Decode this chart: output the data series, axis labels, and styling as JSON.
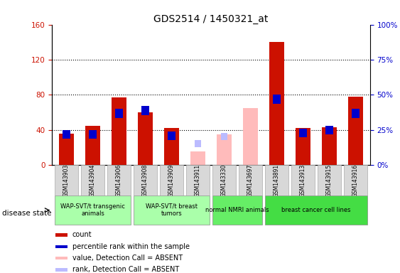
{
  "title": "GDS2514 / 1450321_at",
  "samples": [
    "GSM143903",
    "GSM143904",
    "GSM143906",
    "GSM143908",
    "GSM143909",
    "GSM143911",
    "GSM143330",
    "GSM143697",
    "GSM143891",
    "GSM143913",
    "GSM143915",
    "GSM143916"
  ],
  "count": [
    36,
    45,
    77,
    60,
    42,
    0,
    35,
    0,
    140,
    42,
    43,
    78
  ],
  "rank_pct": [
    25,
    25,
    40,
    42,
    24,
    0,
    0,
    0,
    50,
    26,
    28,
    40
  ],
  "absent_value": [
    0,
    0,
    0,
    0,
    0,
    16,
    35,
    65,
    0,
    0,
    0,
    0
  ],
  "absent_rank_pct": [
    0,
    0,
    0,
    0,
    0,
    18,
    23,
    0,
    0,
    0,
    0,
    0
  ],
  "is_absent": [
    false,
    false,
    false,
    false,
    false,
    true,
    true,
    true,
    false,
    false,
    false,
    false
  ],
  "group_data": [
    {
      "start": 0,
      "end": 2,
      "label": "WAP-SVT/t transgenic\nanimals",
      "color": "#aaffaa"
    },
    {
      "start": 3,
      "end": 5,
      "label": "WAP-SVT/t breast\ntumors",
      "color": "#aaffaa"
    },
    {
      "start": 6,
      "end": 7,
      "label": "normal NMRI animals",
      "color": "#66ee66"
    },
    {
      "start": 8,
      "end": 11,
      "label": "breast cancer cell lines",
      "color": "#44dd44"
    }
  ],
  "ylim_left": [
    0,
    160
  ],
  "ylim_right": [
    0,
    100
  ],
  "yticks_left": [
    0,
    40,
    80,
    120,
    160
  ],
  "yticks_right": [
    0,
    25,
    50,
    75,
    100
  ],
  "ytick_labels_right": [
    "0%",
    "25%",
    "50%",
    "75%",
    "100%"
  ],
  "bar_color_count": "#cc1100",
  "bar_color_rank": "#0000cc",
  "bar_color_absent_value": "#ffbbbb",
  "bar_color_absent_rank": "#bbbbff",
  "legend_items": [
    {
      "color": "#cc1100",
      "label": "count"
    },
    {
      "color": "#0000cc",
      "label": "percentile rank within the sample"
    },
    {
      "color": "#ffbbbb",
      "label": "value, Detection Call = ABSENT"
    },
    {
      "color": "#bbbbff",
      "label": "rank, Detection Call = ABSENT"
    }
  ]
}
